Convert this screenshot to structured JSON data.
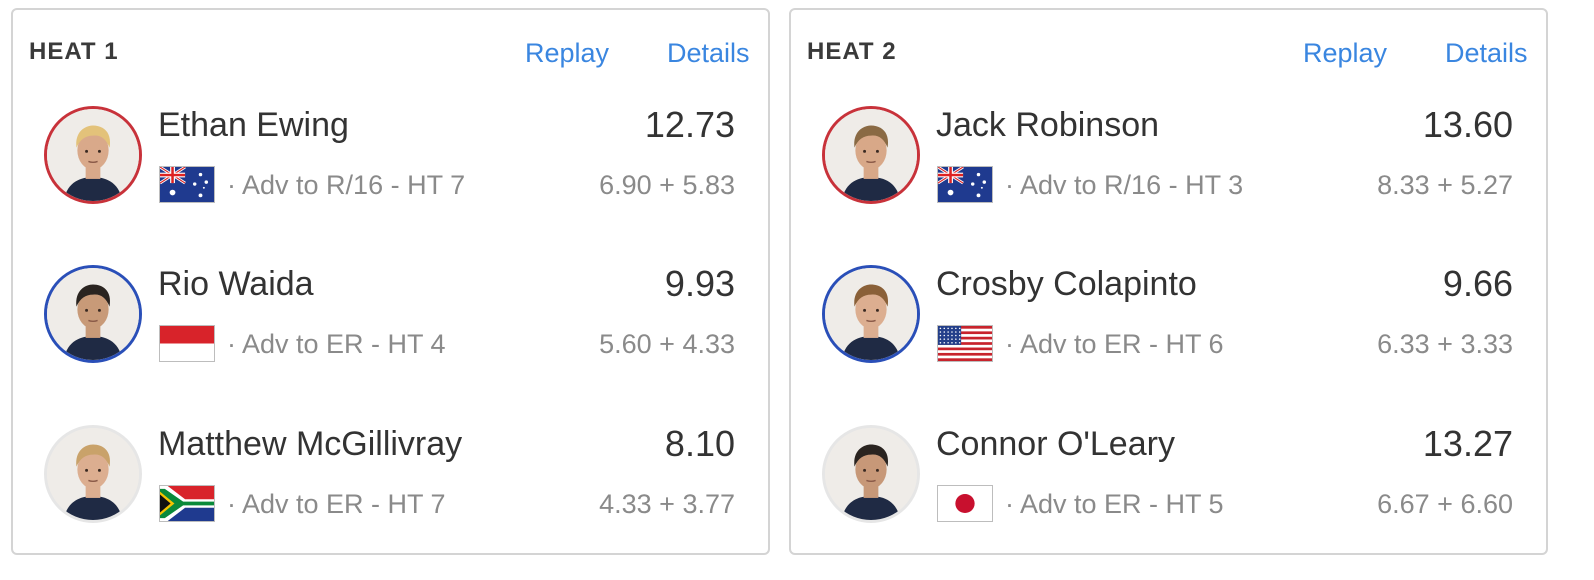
{
  "heats": [
    {
      "title": "HEAT 1",
      "replay_label": "Replay",
      "details_label": "Details",
      "surfers": [
        {
          "name": "Ethan Ewing",
          "flag": "australia",
          "advancement": "· Adv to R/16 - HT 7",
          "total": "12.73",
          "waves": "6.90 + 5.83",
          "ring_color": "#c8323a",
          "skin": "#d9a98a",
          "hair": "#e3c27a"
        },
        {
          "name": "Rio Waida",
          "flag": "indonesia",
          "advancement": "· Adv to ER - HT 4",
          "total": "9.93",
          "waves": "5.60 + 4.33",
          "ring_color": "#2a4fb8",
          "skin": "#c89a78",
          "hair": "#2a2420"
        },
        {
          "name": "Matthew McGillivray",
          "flag": "south-africa",
          "advancement": "· Adv to ER - HT 7",
          "total": "8.10",
          "waves": "4.33 + 3.77",
          "ring_color": "#e6e6e6",
          "skin": "#dcae90",
          "hair": "#c9a26a"
        }
      ]
    },
    {
      "title": "HEAT 2",
      "replay_label": "Replay",
      "details_label": "Details",
      "surfers": [
        {
          "name": "Jack Robinson",
          "flag": "australia",
          "advancement": "· Adv to R/16 - HT 3",
          "total": "13.60",
          "waves": "8.33 + 5.27",
          "ring_color": "#c8323a",
          "skin": "#d8a888",
          "hair": "#8a6a44"
        },
        {
          "name": "Crosby Colapinto",
          "flag": "usa",
          "advancement": "· Adv to ER - HT 6",
          "total": "9.66",
          "waves": "6.33 + 3.33",
          "ring_color": "#2a4fb8",
          "skin": "#dcae90",
          "hair": "#8a6038"
        },
        {
          "name": "Connor O'Leary",
          "flag": "japan",
          "advancement": "· Adv to ER - HT 5",
          "total": "13.27",
          "waves": "6.67 + 6.60",
          "ring_color": "#e6e6e6",
          "skin": "#c79878",
          "hair": "#2a2420"
        }
      ]
    }
  ],
  "colors": {
    "link": "#3a86e0",
    "muted": "#8a8a8a",
    "text": "#333333",
    "border": "#d4d4d4"
  }
}
